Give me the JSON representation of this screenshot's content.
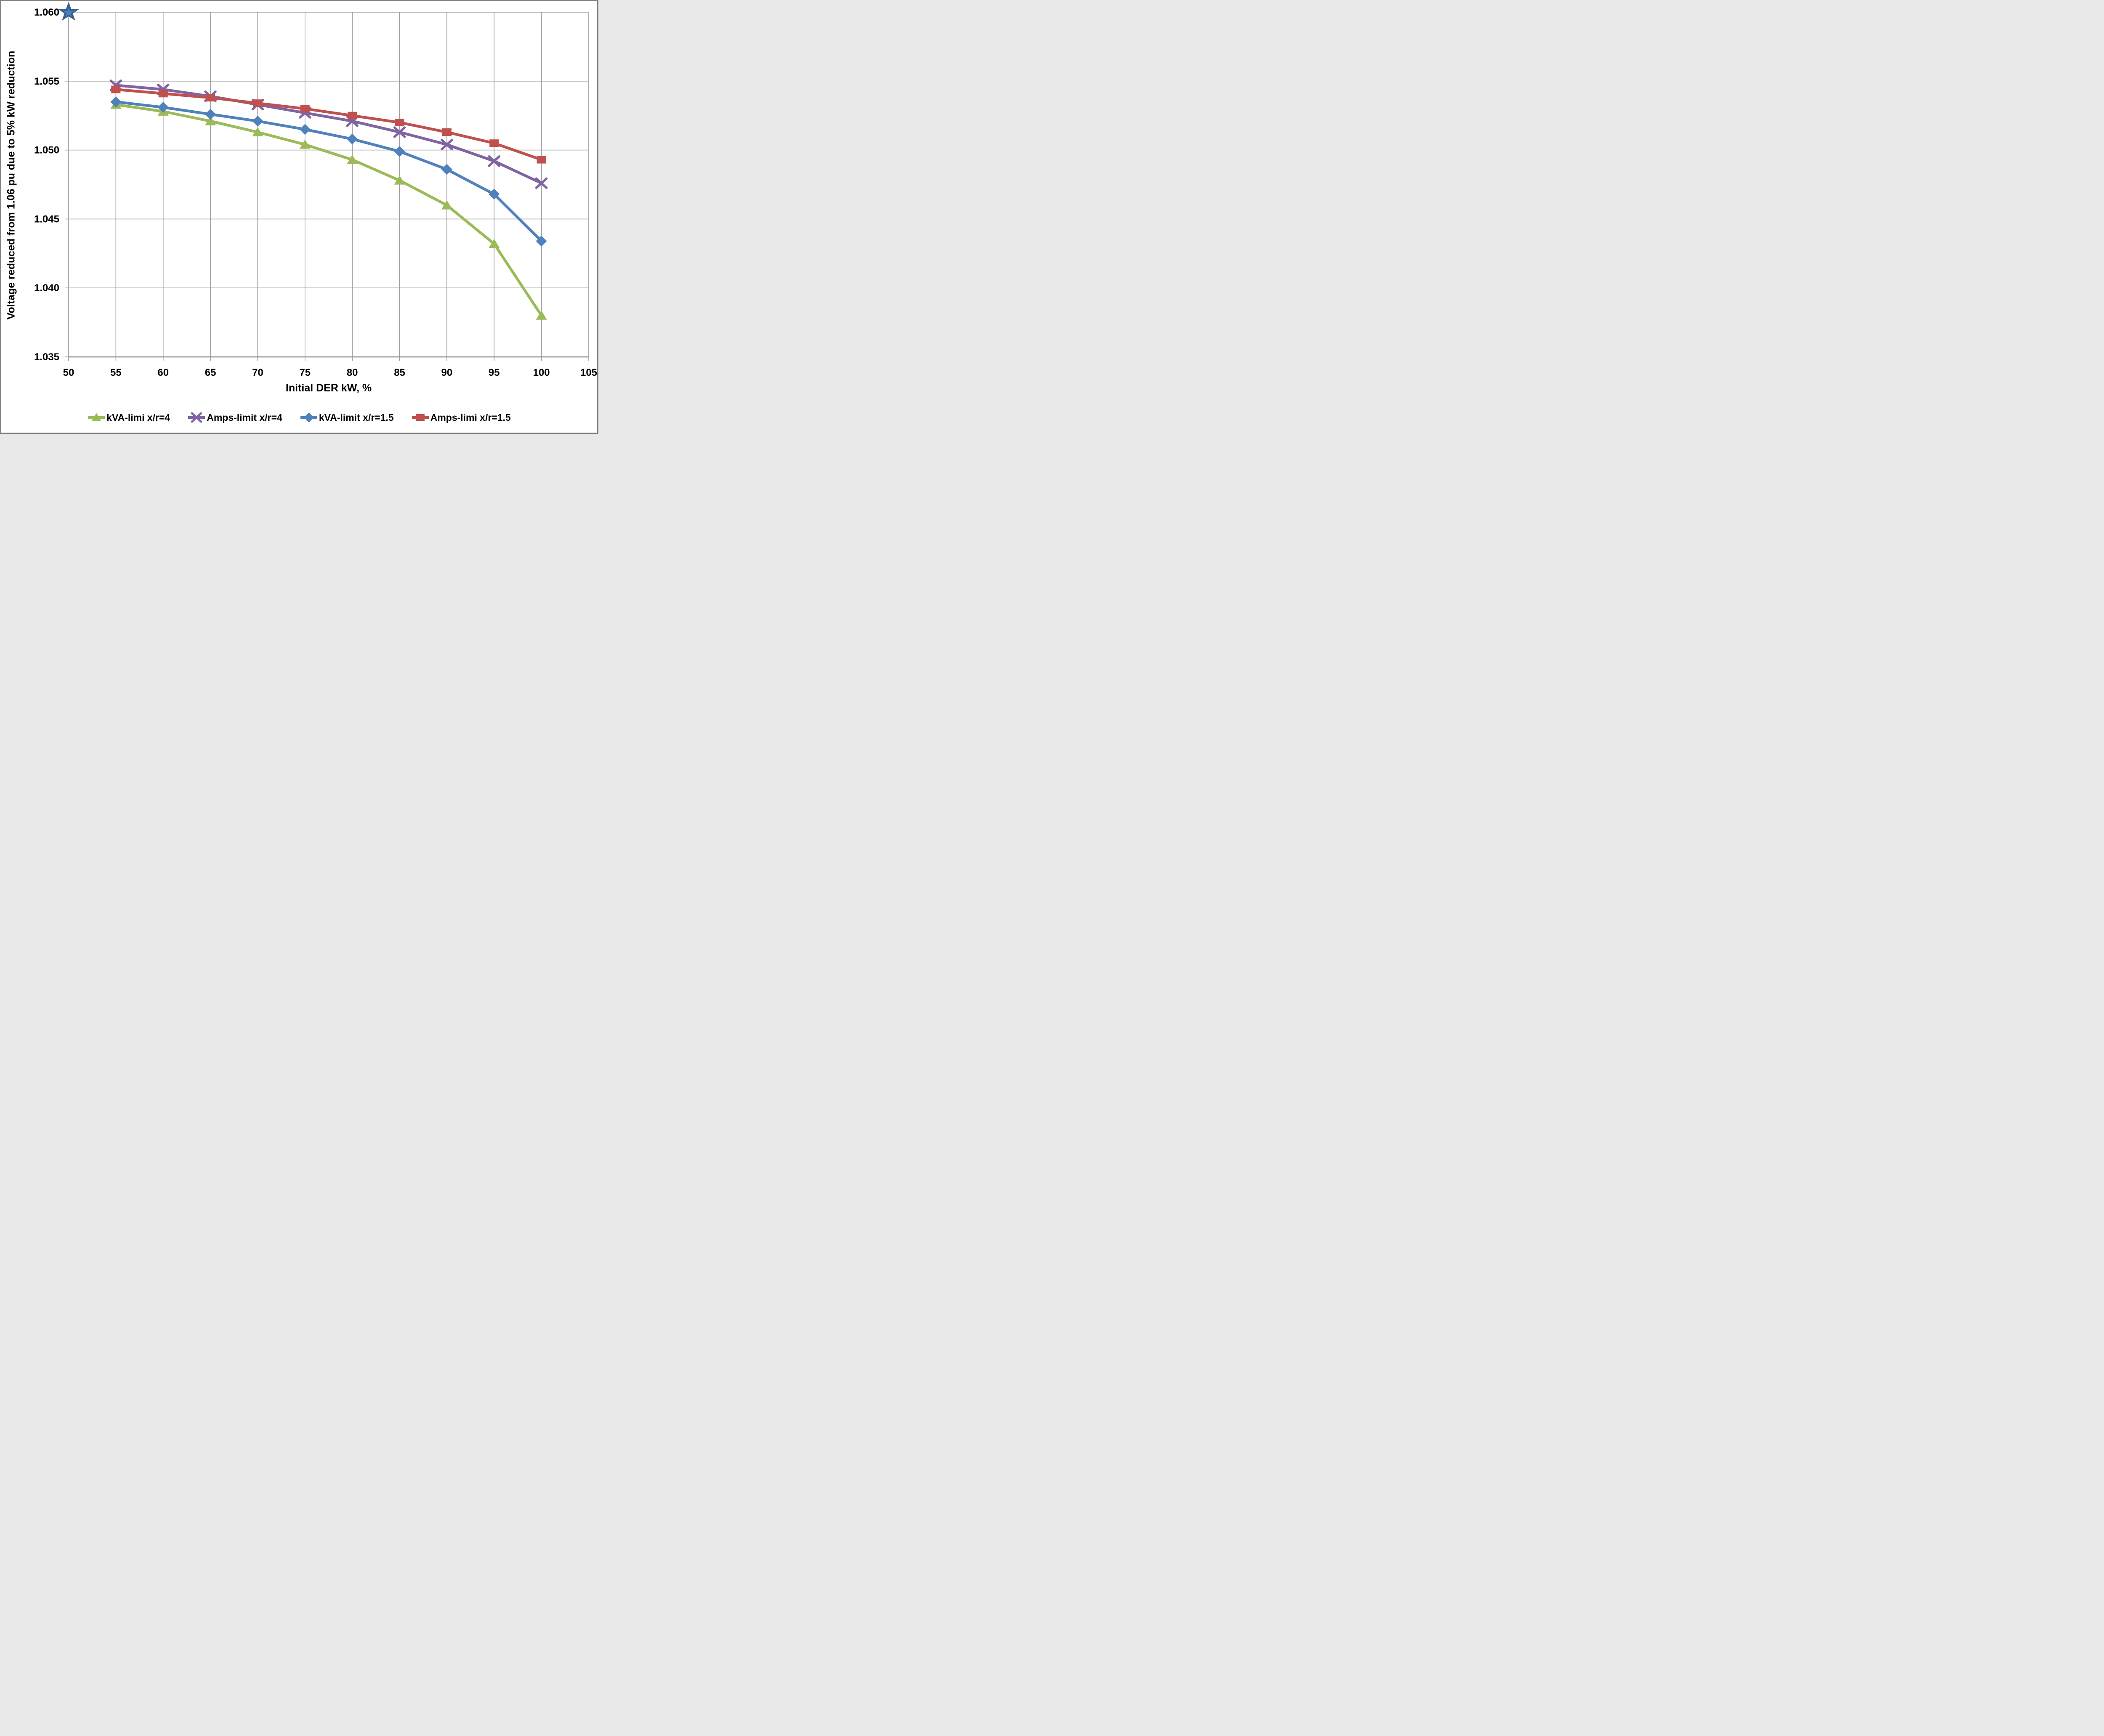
{
  "chart_data": {
    "type": "line",
    "title": "",
    "xlabel": "Initial DER kW, %",
    "ylabel": "Voltage reduced from 1.06 pu due to 5% kW reduction",
    "xlim": [
      50,
      105
    ],
    "ylim": [
      1.035,
      1.06
    ],
    "x_ticks": [
      50,
      55,
      60,
      65,
      70,
      75,
      80,
      85,
      90,
      95,
      100,
      105
    ],
    "y_ticks": [
      1.035,
      1.04,
      1.045,
      1.05,
      1.055,
      1.06
    ],
    "y_tick_decimals": 3,
    "grid": true,
    "legend_position": "bottom",
    "x": [
      55,
      60,
      65,
      70,
      75,
      80,
      85,
      90,
      95,
      100
    ],
    "series": [
      {
        "name": "kVA-limi x/r=4",
        "color": "#9BBB59",
        "marker": "triangle",
        "values": [
          1.0533,
          1.0528,
          1.0521,
          1.0513,
          1.0504,
          1.0493,
          1.0478,
          1.046,
          1.0432,
          1.038
        ]
      },
      {
        "name": "Amps-limit x/r=4",
        "color": "#8064A2",
        "marker": "x",
        "values": [
          1.0547,
          1.0544,
          1.0539,
          1.0533,
          1.0527,
          1.0521,
          1.0513,
          1.0504,
          1.0492,
          1.0476
        ]
      },
      {
        "name": "kVA-limit x/r=1.5",
        "color": "#4F81BD",
        "marker": "diamond",
        "values": [
          1.0535,
          1.0531,
          1.0526,
          1.0521,
          1.0515,
          1.0508,
          1.0499,
          1.0486,
          1.0468,
          1.0434
        ]
      },
      {
        "name": "Amps-limi x/r=1.5",
        "color": "#C0504D",
        "marker": "square",
        "values": [
          1.0544,
          1.0541,
          1.0538,
          1.0534,
          1.053,
          1.0525,
          1.052,
          1.0513,
          1.0505,
          1.0493
        ]
      }
    ],
    "annotation_point": {
      "x": 50,
      "y": 1.06,
      "marker": "star",
      "color": "#38618F",
      "inner_color": "#4E7FBA"
    }
  },
  "style": {
    "grid_color": "#9A9A9A",
    "axis_color": "#9A9A9A",
    "text_color": "#000000",
    "border_color": "#7F7F7F",
    "background": "#FFFFFF"
  }
}
